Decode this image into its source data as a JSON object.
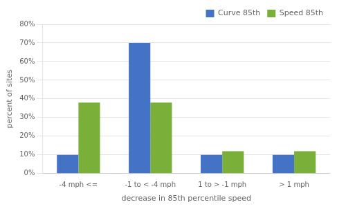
{
  "chart_data": {
    "type": "bar",
    "categories": [
      "-4 mph <=",
      "-1 to < -4 mph",
      "1 to > -1 mph",
      "> 1 mph"
    ],
    "series": [
      {
        "name": "Curve 85th",
        "color": "#4472C4",
        "values": [
          10,
          70,
          10,
          10
        ]
      },
      {
        "name": "Speed 85th",
        "color": "#7AAF3A",
        "values": [
          38,
          38,
          12,
          12
        ]
      }
    ],
    "xlabel": "decrease in 85th percentile speed",
    "ylabel": "percent of sites",
    "ylim": [
      0,
      80
    ],
    "yticks": [
      {
        "value": 0,
        "label": "0%"
      },
      {
        "value": 10,
        "label": "10%"
      },
      {
        "value": 20,
        "label": "20%"
      },
      {
        "value": 30,
        "label": "30%"
      },
      {
        "value": 40,
        "label": "40%"
      },
      {
        "value": 50,
        "label": "50%"
      },
      {
        "value": 60,
        "label": "60%"
      },
      {
        "value": 70,
        "label": "70%"
      },
      {
        "value": 80,
        "label": "80%"
      }
    ],
    "grid": true,
    "legend": "upper right"
  }
}
